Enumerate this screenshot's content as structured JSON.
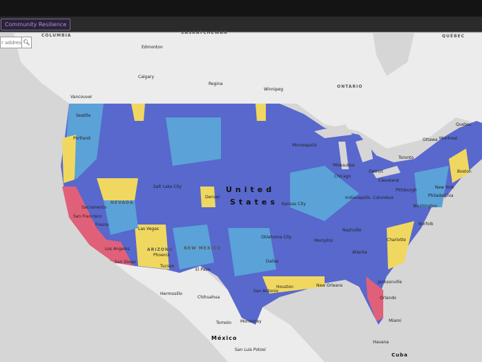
{
  "nav": {
    "tab_label": "Community Resilience"
  },
  "search": {
    "placeholder": "r address",
    "icon": "search-icon"
  },
  "legend_colors": {
    "low": "#5868cc",
    "low_mid": "#5aa2d8",
    "mid_high": "#f0d860",
    "high": "#e0607a"
  },
  "map": {
    "countries": [
      "United",
      "States",
      "México",
      "Cuba"
    ],
    "regions": [
      "COLUMBIA",
      "ONTARIO",
      "QUÉBEC",
      "SASKATCHEWAN",
      "ARIZONA",
      "NEW MEXICO",
      "NEVADA"
    ],
    "cities": [
      "Edmonton",
      "Calgary",
      "Regina",
      "Winnipeg",
      "Vancouver",
      "Seattle",
      "Portland",
      "Salt Lake City",
      "Denver",
      "Sacramento",
      "San Francisco",
      "Fresno",
      "Las Vegas",
      "Los Angeles",
      "San Diego",
      "Phoenix",
      "Tucson",
      "El Paso",
      "Minneapolis",
      "Milwaukee",
      "Chicago",
      "Detroit",
      "Cleveland",
      "Ottawa",
      "Montreal",
      "Quebec",
      "Toronto",
      "Boston",
      "New York",
      "Philadelphia",
      "Washington",
      "Norfolk",
      "Charlotte",
      "Atlanta",
      "Jacksonville",
      "Orlando",
      "Miami",
      "Kansas City",
      "Oklahoma City",
      "Dallas",
      "Houston",
      "San Antonio",
      "New Orleans",
      "Memphis",
      "Nashville",
      "Indianapolis",
      "Columbus",
      "Pittsburgh",
      "Hermosillo",
      "Chihuahua",
      "Torreón",
      "Monterrey",
      "San Luis Potosí",
      "Havana"
    ]
  }
}
